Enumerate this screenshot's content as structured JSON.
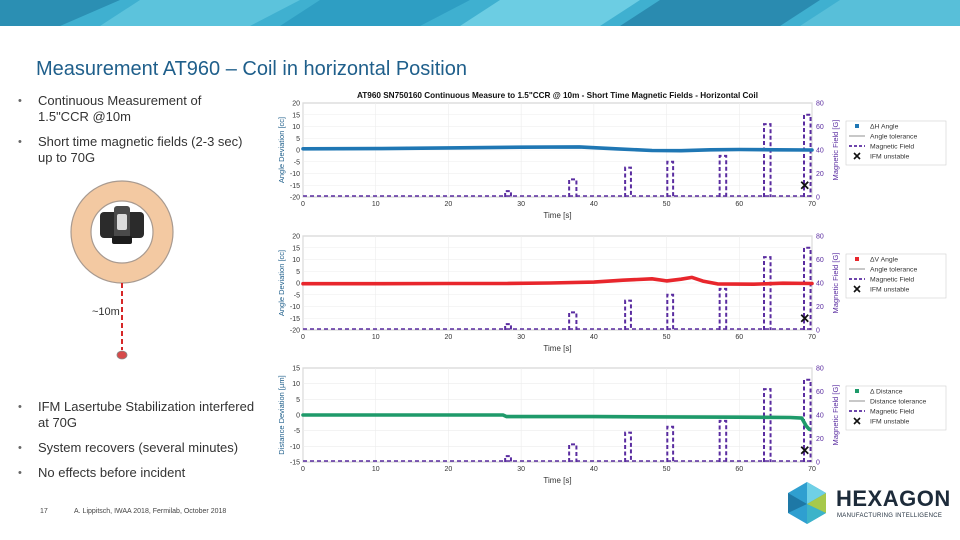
{
  "slide": {
    "title": "Measurement AT960 – Coil in horizontal Position",
    "bullets_top": [
      "Continuous Measurement of 1.5\"CCR @10m",
      "Short time magnetic fields (2-3 sec) up to 70G"
    ],
    "bullets_bottom": [
      "IFM Lasertube Stabilization interfered at 70G",
      "System recovers (several minutes)",
      "No effects before incident"
    ],
    "distance_label": "~10m",
    "page_number": "17",
    "footer": "A. Lippitsch, IWAA 2018, Fermilab, October 2018",
    "logo": {
      "name": "HEXAGON",
      "tagline": "MANUFACTURING INTELLIGENCE"
    },
    "colors": {
      "title": "#1f5f8b",
      "ring": "#f3c9a2",
      "ring_border": "#a89a90",
      "dashed": "#5a2ca0"
    }
  },
  "chart_data": [
    {
      "type": "line",
      "title": "AT960 SN750160 Continuous Measure to 1.5\"CCR @ 10m - Short Time Magnetic Fields - Horizontal Coil",
      "xlabel": "Time [s]",
      "ylabel": "Angle Deviation [cc]",
      "y2label": "Magnetic Field [G]",
      "xlim": [
        0,
        70
      ],
      "ylim": [
        -20,
        20
      ],
      "y2lim": [
        0,
        80
      ],
      "xticks": [
        0,
        10,
        20,
        30,
        40,
        50,
        60,
        70
      ],
      "yticks": [
        20,
        15,
        10,
        5,
        0,
        -5,
        -10,
        -15,
        -20
      ],
      "y2ticks": [
        80,
        60,
        40,
        20,
        0
      ],
      "color": "#1f77b4",
      "series_points": [
        [
          0,
          0.5
        ],
        [
          10,
          0.6
        ],
        [
          20,
          0.9
        ],
        [
          30,
          1.2
        ],
        [
          38,
          1.3
        ],
        [
          43,
          0.5
        ],
        [
          48,
          -0.2
        ],
        [
          52,
          -0.3
        ],
        [
          56,
          0.1
        ],
        [
          60,
          0.2
        ],
        [
          65,
          0.1
        ],
        [
          70,
          0.0
        ]
      ],
      "magnetic_field_pulses": [
        [
          27.8,
          28.6,
          5
        ],
        [
          36.6,
          37.6,
          15
        ],
        [
          44.3,
          45.1,
          25
        ],
        [
          50.1,
          50.9,
          30
        ],
        [
          57.3,
          58.2,
          35
        ],
        [
          63.4,
          64.3,
          62
        ],
        [
          68.9,
          69.8,
          70
        ]
      ],
      "ifm_unstable_x": 69.0,
      "legend": [
        "ΔH Angle",
        "Angle tolerance",
        "Magnetic Field",
        "IFM unstable"
      ]
    },
    {
      "type": "line",
      "xlabel": "Time [s]",
      "ylabel": "Angle Deviation [cc]",
      "y2label": "Magnetic Field [G]",
      "xlim": [
        0,
        70
      ],
      "ylim": [
        -20,
        20
      ],
      "y2lim": [
        0,
        80
      ],
      "xticks": [
        0,
        10,
        20,
        30,
        40,
        50,
        60,
        70
      ],
      "yticks": [
        20,
        15,
        10,
        5,
        0,
        -5,
        -10,
        -15,
        -20
      ],
      "y2ticks": [
        80,
        60,
        40,
        20,
        0
      ],
      "color": "#e8262c",
      "series_points": [
        [
          0,
          -0.3
        ],
        [
          10,
          -0.3
        ],
        [
          20,
          -0.2
        ],
        [
          28,
          -0.2
        ],
        [
          34,
          0.0
        ],
        [
          40,
          0.4
        ],
        [
          44,
          1.2
        ],
        [
          48,
          1.8
        ],
        [
          50,
          0.9
        ],
        [
          52,
          1.6
        ],
        [
          53.5,
          2.4
        ],
        [
          55,
          0.8
        ],
        [
          57,
          -0.4
        ],
        [
          62,
          -0.5
        ],
        [
          66,
          -0.1
        ],
        [
          70,
          -0.2
        ]
      ],
      "magnetic_field_pulses": [
        [
          27.8,
          28.6,
          5
        ],
        [
          36.6,
          37.6,
          15
        ],
        [
          44.3,
          45.1,
          25
        ],
        [
          50.1,
          50.9,
          30
        ],
        [
          57.3,
          58.2,
          35
        ],
        [
          63.4,
          64.3,
          62
        ],
        [
          68.9,
          69.8,
          70
        ]
      ],
      "ifm_unstable_x": 69.0,
      "legend": [
        "ΔV Angle",
        "Angle tolerance",
        "Magnetic Field",
        "IFM unstable"
      ]
    },
    {
      "type": "line",
      "xlabel": "Time [s]",
      "ylabel": "Distance Deviation [µm]",
      "y2label": "Magnetic Field [G]",
      "xlim": [
        0,
        70
      ],
      "ylim": [
        -15,
        15
      ],
      "y2lim": [
        0,
        80
      ],
      "xticks": [
        0,
        10,
        20,
        30,
        40,
        50,
        60,
        70
      ],
      "yticks": [
        15,
        10,
        5,
        0,
        -5,
        -10,
        -15
      ],
      "y2ticks": [
        80,
        60,
        40,
        20,
        0
      ],
      "color": "#1e9a6a",
      "series_points": [
        [
          0,
          0.0
        ],
        [
          20,
          0.0
        ],
        [
          27.5,
          0.0
        ],
        [
          28,
          -0.5
        ],
        [
          40,
          -0.5
        ],
        [
          50,
          -0.6
        ],
        [
          60,
          -0.7
        ],
        [
          67,
          -0.8
        ],
        [
          68.6,
          -1.0
        ],
        [
          69.2,
          -3.5
        ],
        [
          69.6,
          -4.5
        ]
      ],
      "magnetic_field_pulses": [
        [
          27.8,
          28.6,
          5
        ],
        [
          36.6,
          37.6,
          15
        ],
        [
          44.3,
          45.1,
          25
        ],
        [
          50.1,
          50.9,
          30
        ],
        [
          57.3,
          58.2,
          35
        ],
        [
          63.4,
          64.3,
          62
        ],
        [
          68.9,
          69.8,
          70
        ]
      ],
      "ifm_unstable_x": 69.0,
      "legend": [
        "Δ Distance",
        "Distance tolerance",
        "Magnetic Field",
        "IFM unstable"
      ]
    }
  ]
}
